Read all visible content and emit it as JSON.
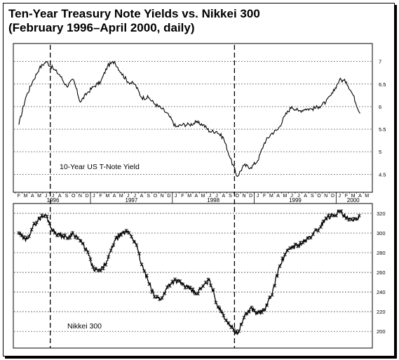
{
  "title": "Ten-Year Treasury Note Yields vs. Nikkei 300",
  "subtitle": "(February 1996–April 2000, daily)",
  "chart_data": [
    {
      "type": "line",
      "series_label": "10-Year US T-Note Yield",
      "y_ticks": [
        "7",
        "6.5",
        "6",
        "5.5",
        "5",
        "4.5"
      ],
      "ylim": [
        4.1,
        7.4
      ],
      "month_letters": [
        "F",
        "M",
        "A",
        "M",
        "J",
        "J",
        "A",
        "S",
        "O",
        "N",
        "D",
        "J",
        "F",
        "M",
        "A",
        "M",
        "J",
        "J",
        "A",
        "S",
        "O",
        "N",
        "D",
        "J",
        "F",
        "M",
        "A",
        "M",
        "J",
        "J",
        "A",
        "S",
        "O",
        "N",
        "D",
        "J",
        "F",
        "M",
        "A",
        "M",
        "J",
        "J",
        "A",
        "S",
        "O",
        "N",
        "D",
        "J",
        "F",
        "M",
        "A",
        "M"
      ],
      "year_labels": [
        "1996",
        "1997",
        "1998",
        "1999",
        "2000"
      ],
      "event_lines": [
        "1996-07",
        "1998-10"
      ],
      "x": [
        "1996-02",
        "1996-03",
        "1996-04",
        "1996-05",
        "1996-06",
        "1996-07",
        "1996-08",
        "1996-09",
        "1996-10",
        "1996-11",
        "1996-12",
        "1997-01",
        "1997-02",
        "1997-03",
        "1997-04",
        "1997-05",
        "1997-06",
        "1997-07",
        "1997-08",
        "1997-09",
        "1997-10",
        "1997-11",
        "1997-12",
        "1998-01",
        "1998-02",
        "1998-03",
        "1998-04",
        "1998-05",
        "1998-06",
        "1998-07",
        "1998-08",
        "1998-09",
        "1998-10",
        "1998-11",
        "1998-12",
        "1999-01",
        "1999-02",
        "1999-03",
        "1999-04",
        "1999-05",
        "1999-06",
        "1999-07",
        "1999-08",
        "1999-09",
        "1999-10",
        "1999-11",
        "1999-12",
        "2000-01",
        "2000-02",
        "2000-03",
        "2000-04"
      ],
      "values": [
        5.6,
        6.2,
        6.55,
        6.85,
        7.0,
        6.85,
        6.7,
        6.45,
        6.6,
        6.1,
        6.3,
        6.45,
        6.55,
        6.9,
        7.0,
        6.75,
        6.55,
        6.5,
        6.2,
        6.2,
        6.05,
        5.95,
        5.8,
        5.55,
        5.6,
        5.6,
        5.65,
        5.6,
        5.45,
        5.45,
        5.3,
        4.85,
        4.45,
        4.7,
        4.65,
        4.8,
        5.2,
        5.4,
        5.5,
        5.8,
        6.0,
        5.9,
        5.95,
        5.95,
        6.0,
        6.1,
        6.3,
        6.6,
        6.55,
        6.25,
        5.85
      ]
    },
    {
      "type": "line",
      "series_label": "Nikkei 300",
      "y_ticks": [
        "320",
        "300",
        "280",
        "260",
        "240",
        "220",
        "200"
      ],
      "ylim": [
        183,
        330
      ],
      "x": [
        "1996-02",
        "1996-03",
        "1996-04",
        "1996-05",
        "1996-06",
        "1996-07",
        "1996-08",
        "1996-09",
        "1996-10",
        "1996-11",
        "1996-12",
        "1997-01",
        "1997-02",
        "1997-03",
        "1997-04",
        "1997-05",
        "1997-06",
        "1997-07",
        "1997-08",
        "1997-09",
        "1997-10",
        "1997-11",
        "1997-12",
        "1998-01",
        "1998-02",
        "1998-03",
        "1998-04",
        "1998-05",
        "1998-06",
        "1998-07",
        "1998-08",
        "1998-09",
        "1998-10",
        "1998-11",
        "1998-12",
        "1999-01",
        "1999-02",
        "1999-03",
        "1999-04",
        "1999-05",
        "1999-06",
        "1999-07",
        "1999-08",
        "1999-09",
        "1999-10",
        "1999-11",
        "1999-12",
        "2000-01",
        "2000-02",
        "2000-03",
        "2000-04"
      ],
      "values": [
        300,
        292,
        305,
        315,
        318,
        302,
        298,
        295,
        300,
        292,
        282,
        262,
        262,
        272,
        292,
        298,
        302,
        292,
        268,
        250,
        234,
        234,
        248,
        252,
        248,
        243,
        238,
        246,
        252,
        228,
        216,
        206,
        197,
        214,
        224,
        218,
        222,
        236,
        262,
        278,
        286,
        288,
        292,
        298,
        305,
        315,
        318,
        322,
        315,
        312,
        318
      ]
    }
  ]
}
